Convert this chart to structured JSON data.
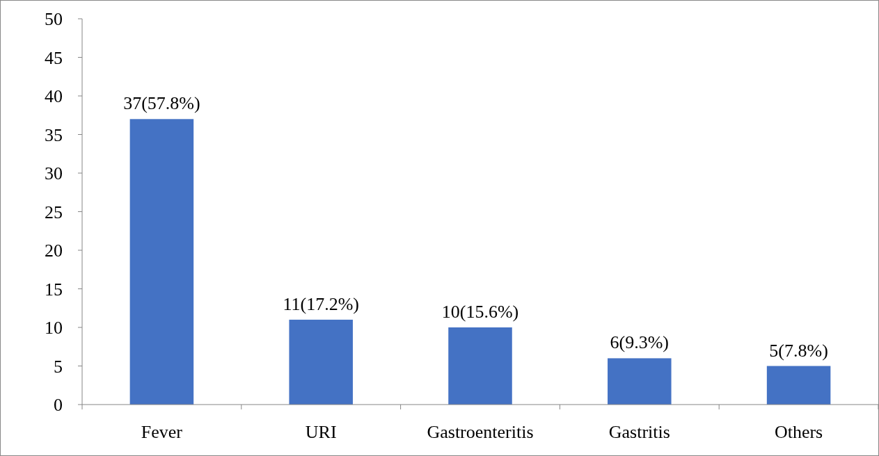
{
  "chart_data": {
    "type": "bar",
    "categories": [
      "Fever",
      "URI",
      "Gastroenteritis",
      "Gastritis",
      "Others"
    ],
    "values": [
      37,
      11,
      10,
      6,
      5
    ],
    "color": "#4472c4",
    "value_labels": [
      "37(57.8%)",
      "11(17.2%)",
      "10(15.6%)",
      "6(9.3%)",
      "5(7.8%)"
    ],
    "ylim": [
      0,
      50
    ],
    "yticks": [
      0,
      5,
      10,
      15,
      20,
      25,
      30,
      35,
      40,
      45,
      50
    ]
  }
}
